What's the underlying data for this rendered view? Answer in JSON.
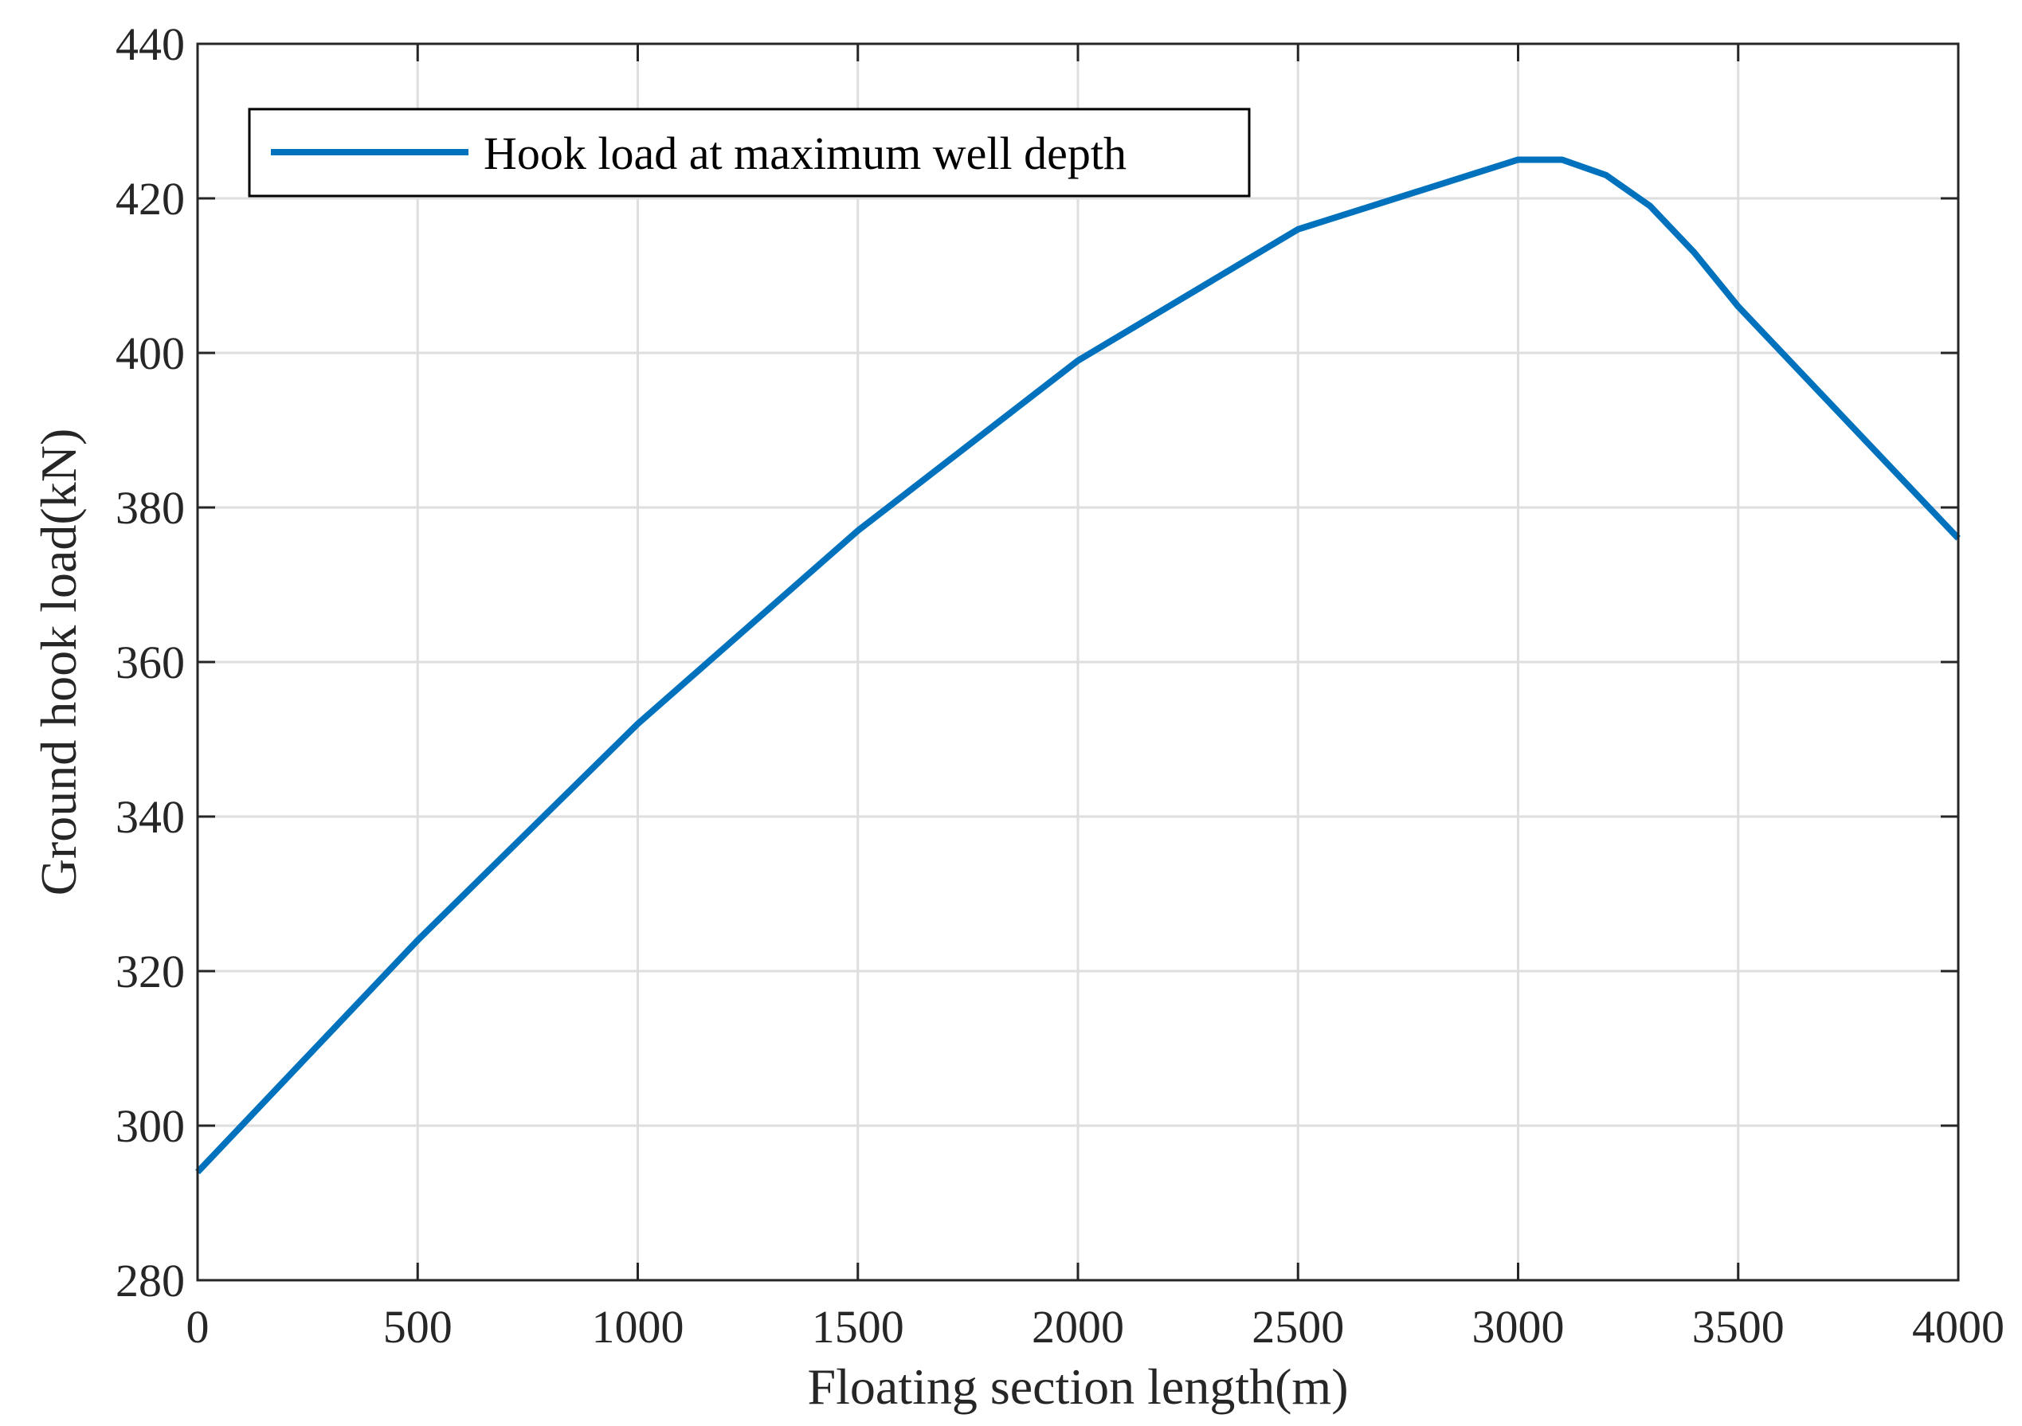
{
  "chart_data": {
    "type": "line",
    "title": "",
    "xlabel": "Floating section length(m)",
    "ylabel": "Ground hook load(kN)",
    "xlim": [
      0,
      4000
    ],
    "ylim": [
      280,
      440
    ],
    "xticks": [
      "0",
      "500",
      "1000",
      "1500",
      "2000",
      "2500",
      "3000",
      "3500",
      "4000"
    ],
    "yticks": [
      "280",
      "300",
      "320",
      "340",
      "360",
      "380",
      "400",
      "420",
      "440"
    ],
    "grid": true,
    "legend_position": "top-left",
    "series": [
      {
        "name": "Hook load at maximum well depth",
        "color": "#0072BD",
        "x": [
          0,
          500,
          1000,
          1500,
          2000,
          2500,
          3000,
          3100,
          3200,
          3300,
          3400,
          3500,
          4000
        ],
        "y": [
          294,
          324,
          352,
          377,
          399,
          416,
          425,
          425,
          423,
          419,
          413,
          406,
          376
        ]
      }
    ]
  }
}
